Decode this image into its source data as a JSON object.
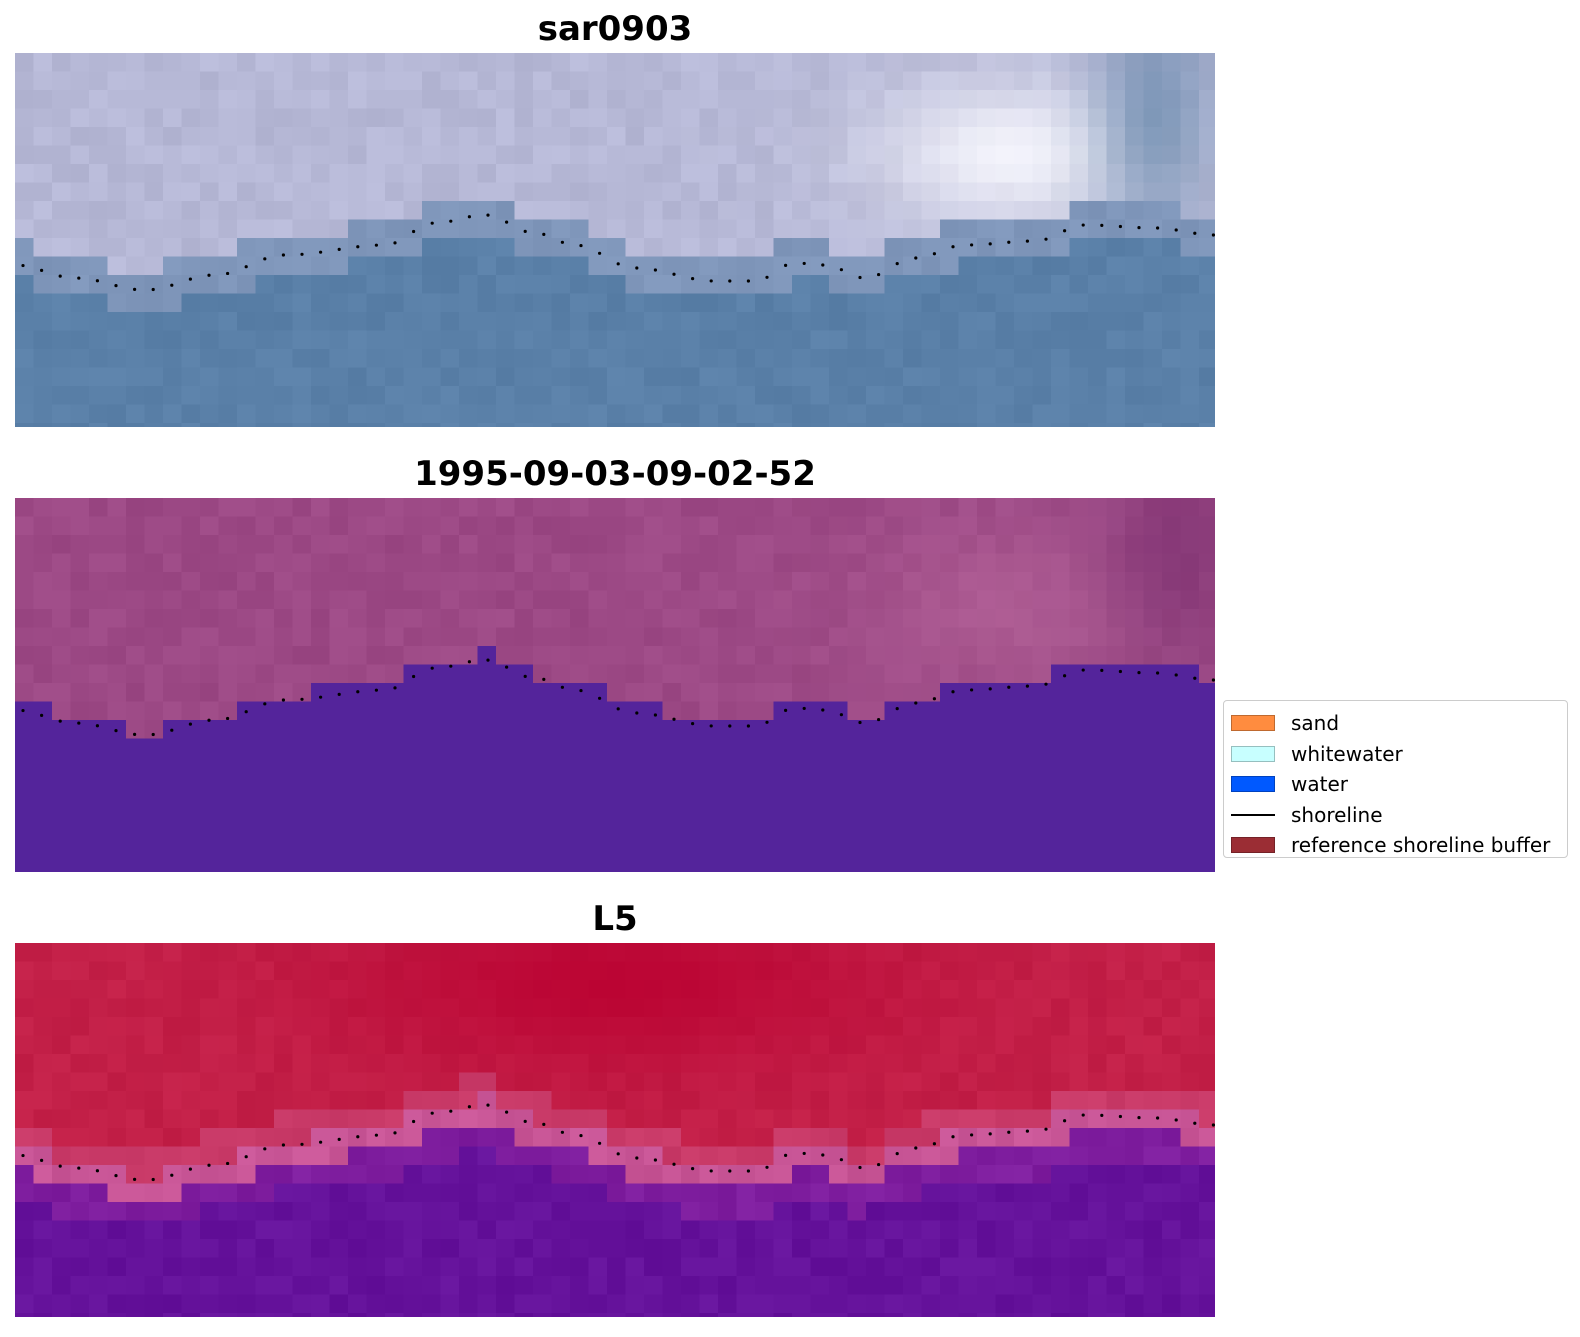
{
  "panels": [
    {
      "title": "sar0903",
      "style": "rgb"
    },
    {
      "title": "1995-09-03-09-02-52",
      "style": "class"
    },
    {
      "title": "L5",
      "style": "index"
    }
  ],
  "legend": {
    "items": [
      {
        "label": "sand",
        "color": "#ff8c3f",
        "kind": "patch"
      },
      {
        "label": "whitewater",
        "color": "#c8ffff",
        "kind": "patch"
      },
      {
        "label": "water",
        "color": "#0059ff",
        "kind": "patch"
      },
      {
        "label": "shoreline",
        "color": "#000000",
        "kind": "line"
      },
      {
        "label": "reference shoreline buffer",
        "color": "#9b2d34",
        "kind": "patch"
      }
    ]
  },
  "colors": {
    "rgb_land": "#b6b8d6",
    "rgb_water": "#5a80a8",
    "class_land": "#9c4985",
    "class_water": "#54249b",
    "index_land": "#c32048",
    "index_water": "#65129b",
    "shoreline_dots": "#000000"
  }
}
